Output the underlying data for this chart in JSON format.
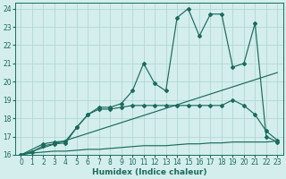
{
  "xlabel": "Humidex (Indice chaleur)",
  "bg_color": "#d4eeed",
  "line_color": "#1a6b5a",
  "grid_color": "#b0d8d4",
  "xlim": [
    -0.5,
    23.5
  ],
  "ylim": [
    16,
    24.3
  ],
  "xticks": [
    0,
    1,
    2,
    3,
    4,
    5,
    6,
    7,
    8,
    9,
    10,
    11,
    12,
    13,
    14,
    15,
    16,
    17,
    18,
    19,
    20,
    21,
    22,
    23
  ],
  "yticks": [
    16,
    17,
    18,
    19,
    20,
    21,
    22,
    23,
    24
  ],
  "series": [
    {
      "x": [
        0,
        1,
        2,
        3,
        4,
        5,
        6,
        7,
        8,
        9,
        10,
        11,
        12,
        13,
        14,
        15,
        16,
        17,
        18,
        19,
        20,
        21,
        22,
        23
      ],
      "y": [
        16.0,
        16.15,
        16.5,
        16.6,
        16.65,
        17.5,
        18.2,
        18.6,
        18.6,
        18.8,
        19.5,
        21.0,
        19.9,
        19.5,
        23.5,
        24.0,
        22.5,
        23.7,
        23.7,
        20.8,
        21.0,
        23.2,
        17.0,
        16.7
      ]
    },
    {
      "x": [
        0,
        1,
        2,
        3,
        4,
        5,
        6,
        7,
        8,
        9,
        10,
        11,
        12,
        13,
        14,
        15,
        16,
        17,
        18,
        19,
        20,
        21,
        22,
        23
      ],
      "y": [
        16.0,
        16.1,
        16.15,
        16.2,
        16.2,
        16.25,
        16.3,
        16.3,
        16.35,
        16.4,
        16.45,
        16.5,
        16.5,
        16.5,
        16.55,
        16.6,
        16.6,
        16.65,
        16.65,
        16.7,
        16.7,
        16.7,
        16.7,
        16.75
      ]
    },
    {
      "x": [
        0,
        23
      ],
      "y": [
        16.0,
        20.5
      ]
    },
    {
      "x": [
        0,
        2,
        3,
        4,
        5,
        6,
        7,
        8,
        9,
        10,
        11,
        12,
        13,
        14,
        15,
        16,
        17,
        18,
        19,
        20,
        21,
        22,
        23
      ],
      "y": [
        16.0,
        16.6,
        16.7,
        16.75,
        17.5,
        18.2,
        18.5,
        18.5,
        18.6,
        18.7,
        18.7,
        18.7,
        18.7,
        18.7,
        18.7,
        18.7,
        18.7,
        18.7,
        19.0,
        18.7,
        18.2,
        17.3,
        16.8
      ]
    }
  ]
}
